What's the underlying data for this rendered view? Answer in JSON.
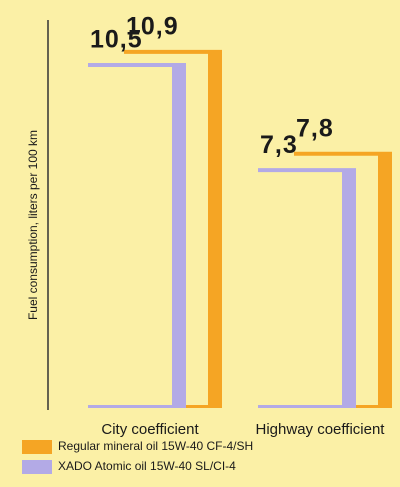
{
  "chart_data": {
    "type": "bar",
    "y_axis_label": "Fuel consumption, liters per 100 km",
    "categories": [
      "City coefficient",
      "Highway coefficient"
    ],
    "series": [
      {
        "name": "Regular mineral oil 15W-40 CF-4/SH",
        "color": "#f5a524",
        "values": [
          10.9,
          7.8
        ],
        "value_labels": [
          "10,9",
          "7,8"
        ]
      },
      {
        "name": "XADO Atomic oil 15W-40 SL/CI-4",
        "color": "#b3aae6",
        "values": [
          10.5,
          7.3
        ],
        "value_labels": [
          "10,5",
          "7,3"
        ]
      }
    ],
    "ylim": [
      0,
      11.2
    ]
  }
}
